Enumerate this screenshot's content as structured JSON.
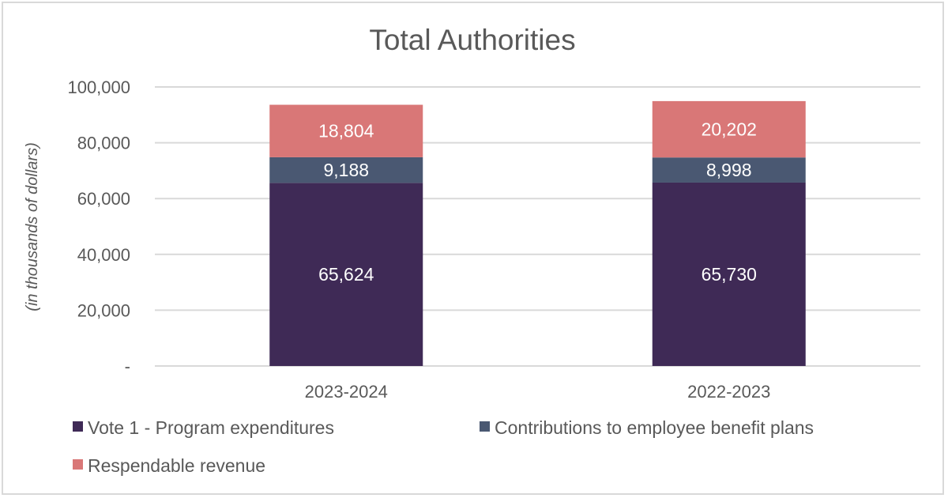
{
  "chart_data": {
    "type": "bar",
    "stacked": true,
    "title": "Total Authorities",
    "xlabel": "",
    "ylabel": "(in thousands of dollars)",
    "ylim": [
      0,
      100000
    ],
    "yticks": [
      0,
      20000,
      40000,
      60000,
      80000,
      100000
    ],
    "ytick_labels": [
      "-",
      "20,000",
      "40,000",
      "60,000",
      "80,000",
      "100,000"
    ],
    "grid": true,
    "legend_position": "bottom",
    "categories": [
      "2023-2024",
      "2022-2023"
    ],
    "series": [
      {
        "name": "Vote 1 - Program expenditures",
        "color": "#3f2a56",
        "values": [
          65624,
          65730
        ],
        "labels": [
          "65,624",
          "65,730"
        ]
      },
      {
        "name": "Contributions to employee benefit plans",
        "color": "#4a5872",
        "values": [
          9188,
          8998
        ],
        "labels": [
          "9,188",
          "8,998"
        ]
      },
      {
        "name": "Respendable revenue",
        "color": "#d97777",
        "values": [
          18804,
          20202
        ],
        "labels": [
          "18,804",
          "20,202"
        ]
      }
    ]
  }
}
